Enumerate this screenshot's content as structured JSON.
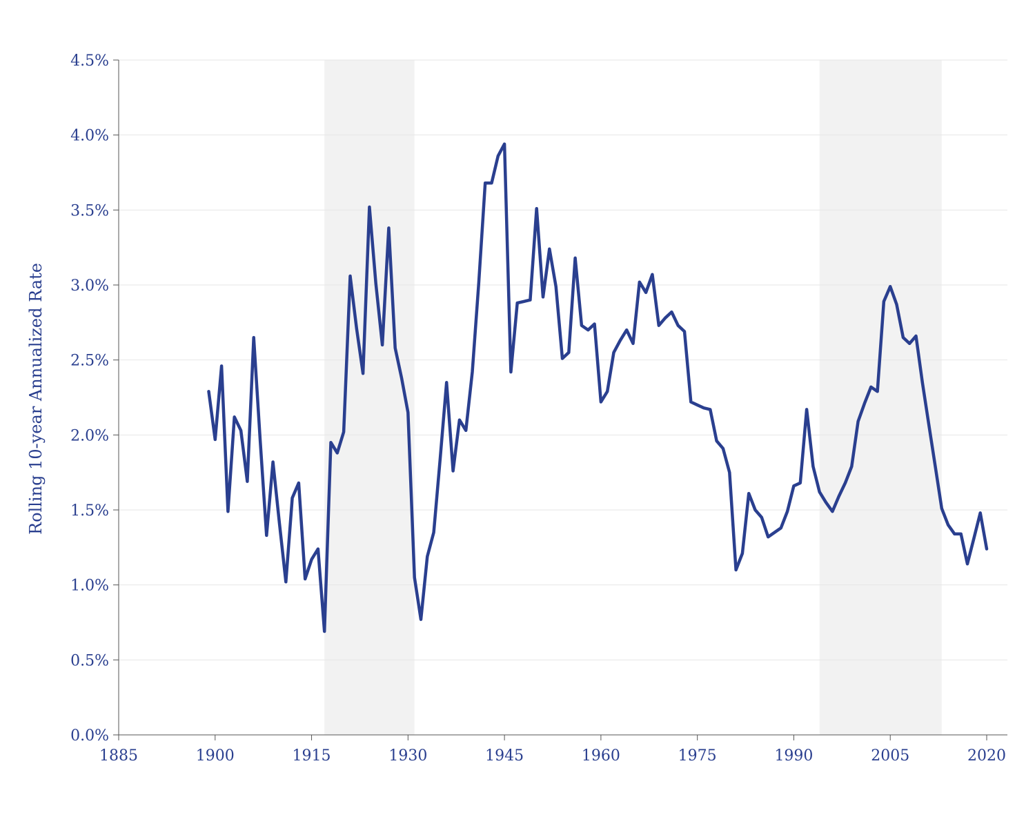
{
  "chart_data": {
    "type": "line",
    "title": "",
    "xlabel": "",
    "ylabel": "Rolling 10-year Annualized Rate",
    "xlim": [
      1885,
      2020
    ],
    "ylim": [
      0,
      4.5
    ],
    "x_ticks": [
      "1885",
      "1900",
      "1915",
      "1930",
      "1945",
      "1960",
      "1975",
      "1990",
      "2005",
      "2020"
    ],
    "y_ticks": [
      "0.0%",
      "0.5%",
      "1.0%",
      "1.5%",
      "2.0%",
      "2.5%",
      "3.0%",
      "3.5%",
      "4.0%",
      "4.5%"
    ],
    "grid": "horizontal",
    "shaded_periods": [
      [
        1917,
        1931
      ],
      [
        1994,
        2013
      ]
    ],
    "colors": {
      "line": "#2a3f8f",
      "shade": "#f2f2f2",
      "grid": "#e6e6e6",
      "axis": "#555555",
      "text": "#2a3f8f"
    },
    "series": [
      {
        "x": [
          1899,
          1900,
          1901,
          1902,
          1903,
          1904,
          1905,
          1906,
          1907,
          1908,
          1909,
          1910,
          1911,
          1912,
          1913,
          1914,
          1915,
          1916,
          1917,
          1918,
          1919,
          1920,
          1921,
          1922,
          1923,
          1924,
          1925,
          1926,
          1927,
          1928,
          1929,
          1930,
          1931,
          1932,
          1933,
          1934,
          1935,
          1936,
          1937,
          1938,
          1939,
          1940,
          1941,
          1942,
          1943,
          1944,
          1945,
          1946,
          1947,
          1948,
          1949,
          1950,
          1951,
          1952,
          1953,
          1954,
          1955,
          1956,
          1957,
          1958,
          1959,
          1960,
          1961,
          1962,
          1963,
          1964,
          1965,
          1966,
          1967,
          1968,
          1969,
          1970,
          1971,
          1972,
          1973,
          1974,
          1975,
          1976,
          1977,
          1978,
          1979,
          1980,
          1981,
          1982,
          1983,
          1984,
          1985,
          1986,
          1987,
          1988,
          1989,
          1990,
          1991,
          1992,
          1993,
          1994,
          1995,
          1996,
          1997,
          1998,
          1999,
          2000,
          2001,
          2002,
          2003,
          2004,
          2005,
          2006,
          2007,
          2008,
          2009,
          2010,
          2011,
          2012,
          2013,
          2014,
          2015,
          2016,
          2017,
          2018,
          2019,
          2020
        ],
        "values": [
          2.29,
          1.97,
          2.46,
          1.49,
          2.12,
          2.03,
          1.69,
          2.65,
          1.97,
          1.33,
          1.82,
          1.41,
          1.02,
          1.58,
          1.68,
          1.04,
          1.17,
          1.24,
          0.69,
          1.95,
          1.88,
          2.02,
          3.06,
          2.71,
          2.41,
          3.52,
          3.01,
          2.6,
          3.38,
          2.58,
          2.38,
          2.15,
          1.05,
          0.77,
          1.19,
          1.35,
          1.84,
          2.35,
          1.76,
          2.1,
          2.03,
          2.42,
          3.01,
          3.68,
          3.68,
          3.86,
          3.94,
          2.42,
          2.88,
          2.89,
          2.9,
          3.51,
          2.92,
          3.24,
          2.99,
          2.51,
          2.55,
          3.18,
          2.73,
          2.7,
          2.74,
          2.22,
          2.29,
          2.55,
          2.63,
          2.7,
          2.61,
          3.02,
          2.95,
          3.07,
          2.73,
          2.78,
          2.82,
          2.73,
          2.69,
          2.22,
          2.2,
          2.18,
          2.17,
          1.96,
          1.91,
          1.75,
          1.1,
          1.21,
          1.61,
          1.5,
          1.45,
          1.32,
          1.35,
          1.38,
          1.49,
          1.66,
          1.68,
          2.17,
          1.79,
          1.62,
          1.55,
          1.49,
          1.59,
          1.68,
          1.79,
          2.09,
          2.21,
          2.32,
          2.29,
          2.89,
          2.99,
          2.87,
          2.65,
          2.61,
          2.66,
          2.35,
          2.07,
          1.79,
          1.51,
          1.4,
          1.34,
          1.34,
          1.14,
          1.31,
          1.48,
          1.24
        ]
      }
    ]
  }
}
